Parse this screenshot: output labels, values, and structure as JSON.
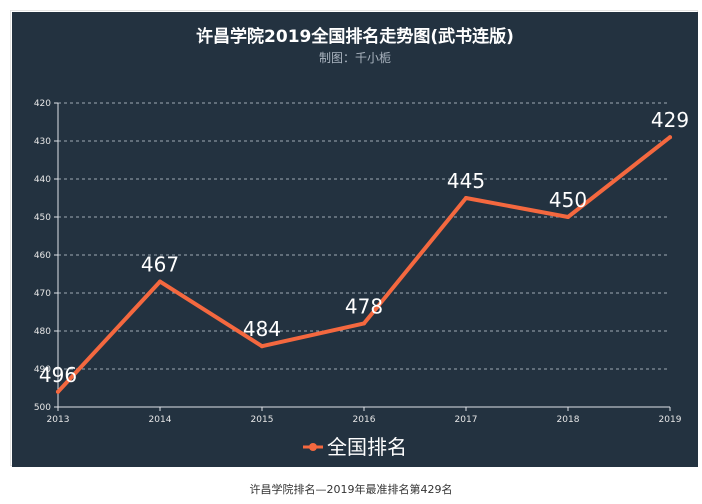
{
  "chart_data": {
    "type": "line",
    "title": "许昌学院2019全国排名走势图(武书连版)",
    "subtitle": "制图：千小栀",
    "x": [
      "2013",
      "2014",
      "2015",
      "2016",
      "2017",
      "2018",
      "2019"
    ],
    "series": [
      {
        "name": "全国排名",
        "values": [
          496,
          467,
          484,
          478,
          445,
          450,
          429
        ],
        "color": "#f4683f"
      }
    ],
    "y_ticks": [
      "420",
      "430",
      "440",
      "450",
      "460",
      "470",
      "480",
      "490",
      "500"
    ],
    "ylim": [
      420,
      500
    ],
    "y_inverted": true,
    "grid": "horizontal-dashed",
    "legend_position": "bottom-center",
    "background": "#233240"
  },
  "caption": "许昌学院排名—2019年最准排名第429名"
}
